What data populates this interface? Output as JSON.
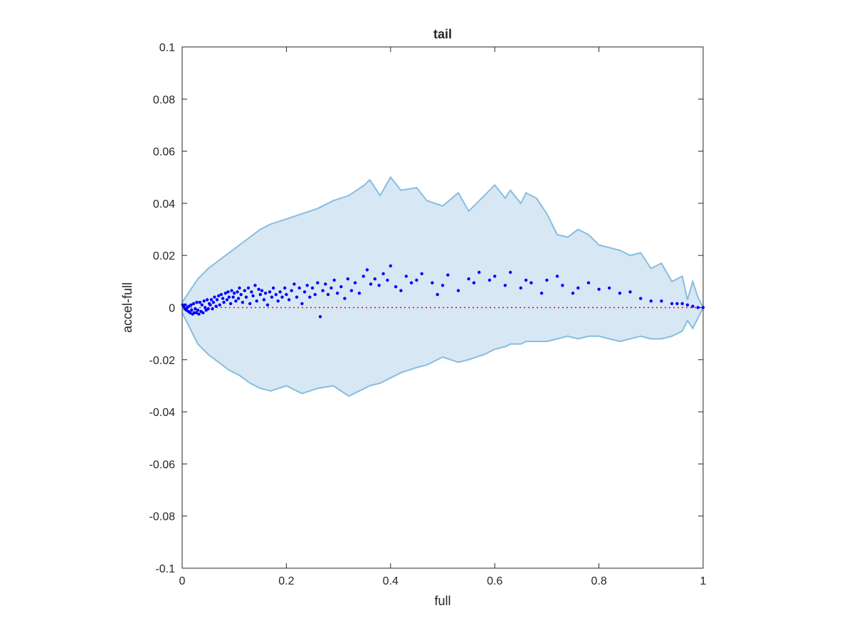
{
  "chart_data": {
    "type": "scatter",
    "title": "tail",
    "xlabel": "full",
    "ylabel": "accel-full",
    "xlim": [
      0,
      1
    ],
    "ylim": [
      -0.1,
      0.1
    ],
    "x_ticks": [
      0,
      0.2,
      0.4,
      0.6,
      0.8,
      1
    ],
    "x_tick_labels": [
      "0",
      "0.2",
      "0.4",
      "0.6",
      "0.8",
      "1"
    ],
    "y_ticks": [
      -0.1,
      -0.08,
      -0.06,
      -0.04,
      -0.02,
      0,
      0.02,
      0.04,
      0.06,
      0.08,
      0.1
    ],
    "y_tick_labels": [
      "-0.1",
      "-0.08",
      "-0.06",
      "-0.04",
      "-0.02",
      "0",
      "0.02",
      "0.04",
      "0.06",
      "0.08",
      "0.1"
    ],
    "grid": false,
    "legend": "none",
    "band": {
      "x": [
        0,
        0.01,
        0.02,
        0.03,
        0.05,
        0.07,
        0.09,
        0.11,
        0.13,
        0.15,
        0.17,
        0.2,
        0.23,
        0.26,
        0.29,
        0.32,
        0.35,
        0.36,
        0.38,
        0.4,
        0.42,
        0.45,
        0.47,
        0.5,
        0.53,
        0.55,
        0.58,
        0.6,
        0.62,
        0.63,
        0.65,
        0.66,
        0.68,
        0.7,
        0.72,
        0.74,
        0.76,
        0.78,
        0.8,
        0.82,
        0.84,
        0.86,
        0.88,
        0.9,
        0.92,
        0.94,
        0.96,
        0.97,
        0.98,
        0.99,
        1.0
      ],
      "upper": [
        0.002,
        0.005,
        0.008,
        0.011,
        0.015,
        0.018,
        0.021,
        0.024,
        0.027,
        0.03,
        0.032,
        0.034,
        0.036,
        0.038,
        0.041,
        0.043,
        0.047,
        0.049,
        0.043,
        0.05,
        0.045,
        0.046,
        0.041,
        0.039,
        0.044,
        0.037,
        0.043,
        0.047,
        0.042,
        0.045,
        0.04,
        0.044,
        0.042,
        0.036,
        0.028,
        0.027,
        0.03,
        0.028,
        0.024,
        0.023,
        0.022,
        0.02,
        0.021,
        0.015,
        0.017,
        0.01,
        0.012,
        0.003,
        0.01,
        0.004,
        0.0
      ],
      "lower": [
        -0.002,
        -0.006,
        -0.01,
        -0.014,
        -0.018,
        -0.021,
        -0.024,
        -0.026,
        -0.029,
        -0.031,
        -0.032,
        -0.03,
        -0.033,
        -0.031,
        -0.03,
        -0.034,
        -0.031,
        -0.03,
        -0.029,
        -0.027,
        -0.025,
        -0.023,
        -0.022,
        -0.019,
        -0.021,
        -0.02,
        -0.018,
        -0.016,
        -0.015,
        -0.014,
        -0.014,
        -0.013,
        -0.013,
        -0.013,
        -0.012,
        -0.011,
        -0.012,
        -0.011,
        -0.011,
        -0.012,
        -0.013,
        -0.012,
        -0.011,
        -0.012,
        -0.012,
        -0.011,
        -0.009,
        -0.005,
        -0.008,
        -0.004,
        0.0
      ]
    },
    "series": [
      {
        "x": [
          0.001,
          0.003,
          0.005,
          0.006,
          0.008,
          0.01,
          0.012,
          0.013,
          0.015,
          0.017,
          0.018,
          0.02,
          0.022,
          0.023,
          0.025,
          0.027,
          0.028,
          0.03,
          0.032,
          0.034,
          0.036,
          0.038,
          0.04,
          0.042,
          0.044,
          0.046,
          0.048,
          0.05,
          0.052,
          0.054,
          0.056,
          0.058,
          0.06,
          0.062,
          0.065,
          0.067,
          0.07,
          0.072,
          0.075,
          0.078,
          0.08,
          0.083,
          0.086,
          0.088,
          0.09,
          0.093,
          0.095,
          0.098,
          0.1,
          0.103,
          0.106,
          0.108,
          0.11,
          0.113,
          0.116,
          0.12,
          0.123,
          0.127,
          0.13,
          0.133,
          0.136,
          0.14,
          0.143,
          0.147,
          0.15,
          0.153,
          0.157,
          0.16,
          0.164,
          0.168,
          0.172,
          0.175,
          0.18,
          0.184,
          0.188,
          0.192,
          0.197,
          0.2,
          0.205,
          0.21,
          0.215,
          0.22,
          0.225,
          0.23,
          0.235,
          0.24,
          0.245,
          0.25,
          0.255,
          0.26,
          0.265,
          0.27,
          0.275,
          0.28,
          0.286,
          0.292,
          0.298,
          0.305,
          0.312,
          0.318,
          0.325,
          0.332,
          0.34,
          0.348,
          0.355,
          0.362,
          0.37,
          0.378,
          0.386,
          0.394,
          0.4,
          0.41,
          0.42,
          0.43,
          0.44,
          0.45,
          0.46,
          0.48,
          0.49,
          0.5,
          0.51,
          0.53,
          0.55,
          0.56,
          0.57,
          0.59,
          0.6,
          0.62,
          0.63,
          0.65,
          0.66,
          0.67,
          0.69,
          0.7,
          0.72,
          0.73,
          0.75,
          0.76,
          0.78,
          0.8,
          0.82,
          0.84,
          0.86,
          0.88,
          0.9,
          0.92,
          0.94,
          0.95,
          0.96,
          0.97,
          0.98,
          0.99,
          1.0
        ],
        "y": [
          0.001,
          0.0005,
          -0.0005,
          0.001,
          -0.001,
          0.0,
          -0.0015,
          0.0005,
          -0.002,
          0.001,
          -0.001,
          -0.0025,
          0.0015,
          -0.002,
          -0.0005,
          -0.002,
          0.002,
          -0.001,
          -0.0025,
          0.002,
          -0.0015,
          0.001,
          -0.002,
          0.0025,
          0.0,
          -0.001,
          0.003,
          -0.0005,
          0.0015,
          0.001,
          0.003,
          -0.0005,
          0.002,
          0.004,
          0.0005,
          0.003,
          0.0045,
          0.001,
          0.005,
          0.0035,
          0.002,
          0.0055,
          0.003,
          0.006,
          0.004,
          0.0015,
          0.0065,
          0.004,
          0.0055,
          0.0025,
          0.006,
          0.0035,
          0.0075,
          0.005,
          0.002,
          0.0065,
          0.004,
          0.0075,
          0.0015,
          0.006,
          0.0045,
          0.0085,
          0.0025,
          0.007,
          0.005,
          0.0065,
          0.003,
          0.0055,
          0.001,
          0.006,
          0.004,
          0.0075,
          0.005,
          0.0025,
          0.006,
          0.004,
          0.0075,
          0.005,
          0.003,
          0.0065,
          0.009,
          0.004,
          0.0075,
          0.0015,
          0.006,
          0.0085,
          0.004,
          0.0075,
          0.005,
          0.0095,
          -0.0035,
          0.0065,
          0.009,
          0.005,
          0.0075,
          0.0105,
          0.0055,
          0.008,
          0.0035,
          0.011,
          0.0065,
          0.0095,
          0.0055,
          0.012,
          0.0145,
          0.009,
          0.011,
          0.0085,
          0.013,
          0.0105,
          0.016,
          0.008,
          0.0065,
          0.012,
          0.0095,
          0.0105,
          0.013,
          0.0095,
          0.005,
          0.0085,
          0.0125,
          0.0065,
          0.011,
          0.0095,
          0.0135,
          0.0105,
          0.012,
          0.0085,
          0.0135,
          0.0075,
          0.0105,
          0.0095,
          0.0055,
          0.0105,
          0.012,
          0.0085,
          0.0055,
          0.0075,
          0.0095,
          0.007,
          0.0075,
          0.0055,
          0.006,
          0.0035,
          0.0025,
          0.0025,
          0.0015,
          0.0015,
          0.0015,
          0.001,
          0.0005,
          0.0,
          0.0
        ]
      }
    ],
    "reference_line": {
      "y": 0,
      "style": "dotted",
      "color": "#ff0000"
    },
    "colors": {
      "band_fill": "#d7e7f4",
      "band_edge": "#86bde0",
      "points": "#0000ff",
      "axes": "#262626"
    }
  }
}
